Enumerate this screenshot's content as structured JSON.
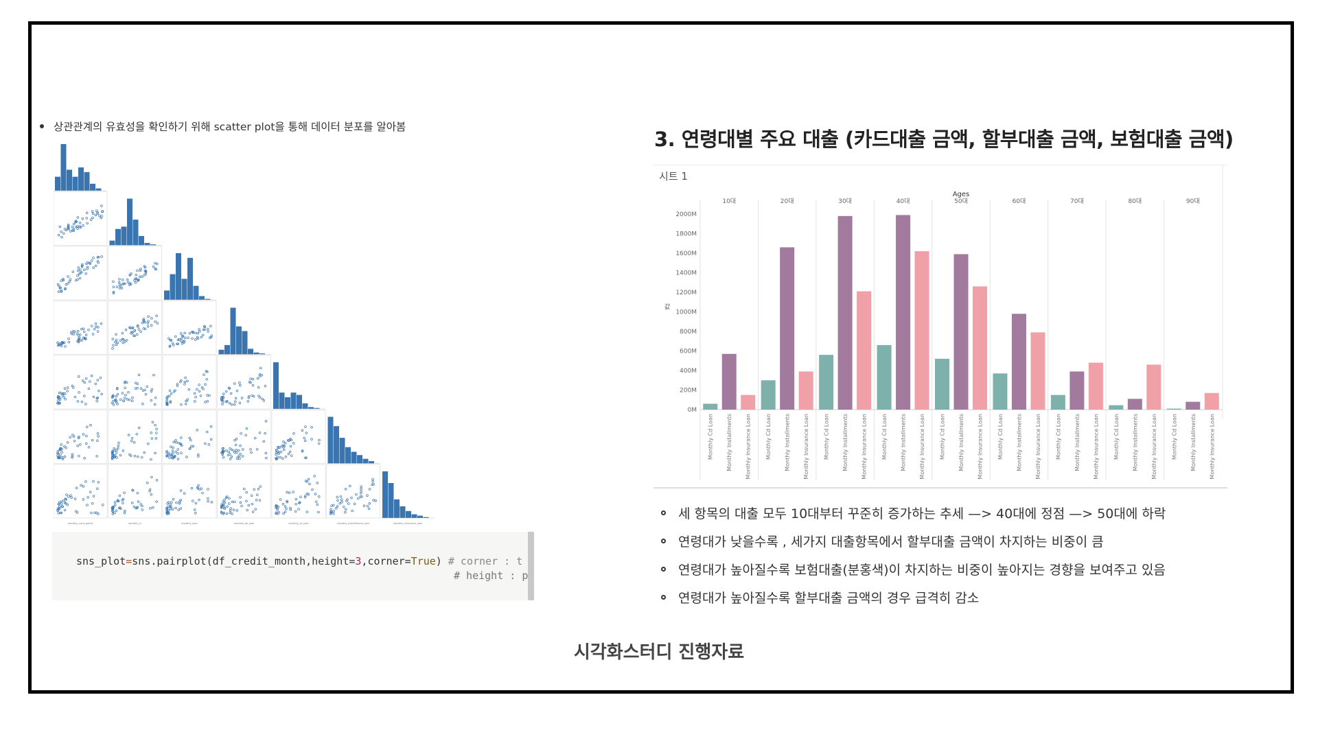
{
  "left": {
    "bullet": "상관관계의 유효성을 확인하기 위해 scatter plot을 통해 데이터 분포를 알아봄",
    "pairplot_axis_labels": [
      "monthly_card_spend",
      "monthly_lv",
      "monthly_loan",
      "monthly_bk_loan",
      "monthly_cd_loan",
      "monthly_installments_loan",
      "monthly_insurance_loan"
    ],
    "code": {
      "var": "sns_plot",
      "eq": "=",
      "call": "sns.pairplot(df_credit_month,height=",
      "height_val": "3",
      "mid": ",corner=",
      "corner_val": "True",
      "close": ")",
      "comment1": " # corner : t",
      "comment2": "# height : p"
    }
  },
  "right": {
    "title": "3. 연령대별 주요 대출 (카드대출 금액, 할부대출 금액, 보험대출 금액)",
    "bullets": [
      "세 항목의 대출 모두 10대부터 꾸준히 증가하는 추세 —> 40대에 정점 —> 50대에 하락",
      "연령대가 낮을수록 , 세가지 대출항목에서 할부대출 금액이 차지하는 비중이 큼",
      "연령대가 높아질수록 보험대출(분홍색)이 차지하는 비중이 높아지는 경향을 보여주고 있음",
      "연령대가 높아질수록 할부대출 금액의 경우 급격히 감소"
    ]
  },
  "footer": "시각화스터디 진행자료",
  "colors": {
    "cd_loan": "#7fb1ac",
    "installments": "#a27a9e",
    "insurance": "#f0a0a7",
    "pairplot_blue": "#3a75b0"
  },
  "chart_data": {
    "type": "bar",
    "sheet_title": "시트 1",
    "group_axis_title": "Ages",
    "ylabel": "값",
    "categories": [
      "10대",
      "20대",
      "30대",
      "40대",
      "50대",
      "60대",
      "70대",
      "80대",
      "90대"
    ],
    "series": [
      {
        "name": "Monthly Cd Loan",
        "values": [
          60,
          300,
          560,
          660,
          520,
          370,
          150,
          45,
          10
        ]
      },
      {
        "name": "Monthly Installments",
        "values": [
          570,
          1660,
          1980,
          1990,
          1590,
          980,
          390,
          110,
          80
        ]
      },
      {
        "name": "Monthly Insurance Loan",
        "values": [
          150,
          390,
          1210,
          1620,
          1260,
          790,
          480,
          460,
          170
        ]
      }
    ],
    "yticks": [
      "0M",
      "200M",
      "400M",
      "600M",
      "800M",
      "1000M",
      "1200M",
      "1400M",
      "1600M",
      "1800M",
      "2000M"
    ],
    "ylim": [
      0,
      2000
    ],
    "grid": false
  }
}
